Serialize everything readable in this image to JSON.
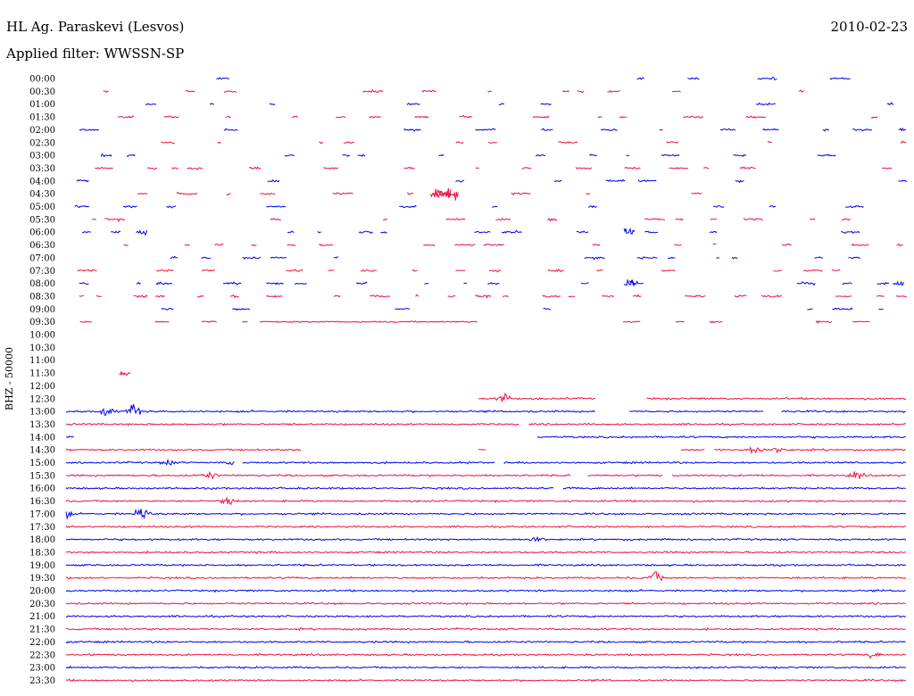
{
  "header": {
    "station": "HL Ag. Paraskevi (Lesvos)",
    "date": "2010-02-23",
    "filter_label": "Applied filter: WWSSN-SP"
  },
  "channel_label": "BHZ - 50000",
  "colors": {
    "line_blue": "#0000ee",
    "line_red": "#ee1144",
    "text": "#000000",
    "background": "#ffffff"
  },
  "chart_data": {
    "type": "helicorder",
    "title": "HL Ag. Paraskevi (Lesvos)",
    "date": "2010-02-23",
    "filter": "WWSSN-SP",
    "channel": "BHZ - 50000",
    "row_labels": [
      "00:00",
      "00:30",
      "01:00",
      "01:30",
      "02:00",
      "02:30",
      "03:00",
      "03:30",
      "04:00",
      "04:30",
      "05:00",
      "05:30",
      "06:00",
      "06:30",
      "07:00",
      "07:30",
      "08:00",
      "08:30",
      "09:00",
      "09:30",
      "10:00",
      "10:30",
      "11:00",
      "11:30",
      "12:00",
      "12:30",
      "13:00",
      "13:30",
      "14:00",
      "14:30",
      "15:00",
      "15:30",
      "16:00",
      "16:30",
      "17:00",
      "17:30",
      "18:00",
      "18:30",
      "19:00",
      "19:30",
      "20:00",
      "20:30",
      "21:00",
      "21:30",
      "22:00",
      "22:30",
      "23:00",
      "23:30"
    ],
    "row_colors": [
      "blue",
      "red"
    ],
    "row_duration_minutes": 30,
    "rows": [
      {
        "mode": "sparse",
        "density": 0.1
      },
      {
        "mode": "sparse",
        "density": 0.12
      },
      {
        "mode": "sparse",
        "density": 0.1
      },
      {
        "mode": "sparse",
        "density": 0.12
      },
      {
        "mode": "sparse",
        "density": 0.12
      },
      {
        "mode": "sparse",
        "density": 0.12
      },
      {
        "mode": "sparse",
        "density": 0.12
      },
      {
        "mode": "sparse",
        "density": 0.12
      },
      {
        "mode": "sparse",
        "density": 0.12
      },
      {
        "mode": "sparse",
        "density": 0.15,
        "events": [
          [
            0.44,
            3
          ],
          [
            0.45,
            4
          ],
          [
            0.46,
            5
          ]
        ]
      },
      {
        "mode": "sparse",
        "density": 0.14
      },
      {
        "mode": "sparse",
        "density": 0.16
      },
      {
        "mode": "sparse",
        "density": 0.18,
        "events": [
          [
            0.67,
            3
          ],
          [
            0.09,
            2
          ]
        ]
      },
      {
        "mode": "sparse",
        "density": 0.2
      },
      {
        "mode": "sparse",
        "density": 0.2
      },
      {
        "mode": "sparse",
        "density": 0.22
      },
      {
        "mode": "sparse",
        "density": 0.22,
        "events": [
          [
            0.67,
            3
          ],
          [
            0.99,
            2
          ]
        ]
      },
      {
        "mode": "sparse",
        "density": 0.22
      },
      {
        "mode": "sparse",
        "density": 0.04,
        "ranges": [
          [
            0.39,
            0.41
          ]
        ]
      },
      {
        "mode": "sparse",
        "density": 0.14,
        "ranges": [
          [
            0.23,
            0.49
          ]
        ]
      },
      {
        "mode": "empty"
      },
      {
        "mode": "empty"
      },
      {
        "mode": "empty"
      },
      {
        "mode": "sparse",
        "density": 0.0,
        "events": [
          [
            0.07,
            2
          ]
        ]
      },
      {
        "mode": "empty"
      },
      {
        "mode": "continuous",
        "ranges": [
          [
            0.49,
            0.63
          ],
          [
            0.69,
            1.0
          ]
        ],
        "events": [
          [
            0.52,
            4
          ]
        ]
      },
      {
        "mode": "continuous",
        "ranges": [
          [
            0.0,
            1.0
          ]
        ],
        "gaps": [
          [
            0.63,
            0.67
          ],
          [
            0.83,
            0.85
          ]
        ],
        "events": [
          [
            0.08,
            8
          ],
          [
            0.05,
            4
          ]
        ]
      },
      {
        "mode": "continuous",
        "ranges": [
          [
            0.0,
            1.0
          ]
        ],
        "gaps": [
          [
            0.54,
            0.55
          ]
        ]
      },
      {
        "mode": "continuous",
        "ranges": [
          [
            0.0,
            0.01
          ],
          [
            0.56,
            1.0
          ]
        ]
      },
      {
        "mode": "continuous",
        "ranges": [
          [
            0.0,
            0.28
          ],
          [
            0.49,
            0.5
          ],
          [
            0.73,
            1.0
          ]
        ],
        "gaps": [
          [
            0.76,
            0.77
          ]
        ],
        "events": [
          [
            0.82,
            4
          ],
          [
            0.85,
            3
          ]
        ]
      },
      {
        "mode": "continuous",
        "ranges": [
          [
            0.0,
            1.0
          ]
        ],
        "gaps": [
          [
            0.2,
            0.21
          ],
          [
            0.51,
            0.52
          ]
        ],
        "events": [
          [
            0.12,
            2
          ],
          [
            0.2,
            2
          ]
        ]
      },
      {
        "mode": "continuous",
        "ranges": [
          [
            0.0,
            1.0
          ]
        ],
        "gaps": [
          [
            0.6,
            0.62
          ],
          [
            0.71,
            0.72
          ]
        ],
        "events": [
          [
            0.17,
            3
          ],
          [
            0.94,
            3
          ]
        ]
      },
      {
        "mode": "continuous",
        "ranges": [
          [
            0.0,
            1.0
          ]
        ],
        "gaps": [
          [
            0.58,
            0.59
          ]
        ]
      },
      {
        "mode": "continuous",
        "ranges": [
          [
            0.0,
            1.0
          ]
        ],
        "events": [
          [
            0.19,
            5
          ]
        ]
      },
      {
        "mode": "continuous",
        "ranges": [
          [
            0.0,
            1.0
          ]
        ],
        "events": [
          [
            0.09,
            6
          ],
          [
            0.0,
            3
          ]
        ]
      },
      {
        "mode": "continuous",
        "ranges": [
          [
            0.0,
            1.0
          ]
        ]
      },
      {
        "mode": "continuous",
        "ranges": [
          [
            0.0,
            1.0
          ]
        ],
        "events": [
          [
            0.56,
            2
          ]
        ]
      },
      {
        "mode": "continuous",
        "ranges": [
          [
            0.0,
            1.0
          ]
        ]
      },
      {
        "mode": "continuous",
        "ranges": [
          [
            0.0,
            1.0
          ]
        ]
      },
      {
        "mode": "continuous",
        "ranges": [
          [
            0.0,
            1.0
          ]
        ],
        "events": [
          [
            0.7,
            6
          ]
        ]
      },
      {
        "mode": "continuous",
        "ranges": [
          [
            0.0,
            1.0
          ]
        ]
      },
      {
        "mode": "continuous",
        "ranges": [
          [
            0.0,
            1.0
          ]
        ]
      },
      {
        "mode": "continuous",
        "ranges": [
          [
            0.0,
            1.0
          ]
        ]
      },
      {
        "mode": "continuous",
        "ranges": [
          [
            0.0,
            1.0
          ]
        ]
      },
      {
        "mode": "continuous",
        "ranges": [
          [
            0.0,
            1.0
          ]
        ]
      },
      {
        "mode": "continuous",
        "ranges": [
          [
            0.0,
            1.0
          ]
        ],
        "events": [
          [
            0.96,
            2
          ]
        ]
      },
      {
        "mode": "continuous",
        "ranges": [
          [
            0.0,
            1.0
          ]
        ]
      },
      {
        "mode": "continuous",
        "ranges": [
          [
            0.0,
            1.0
          ]
        ]
      }
    ]
  }
}
